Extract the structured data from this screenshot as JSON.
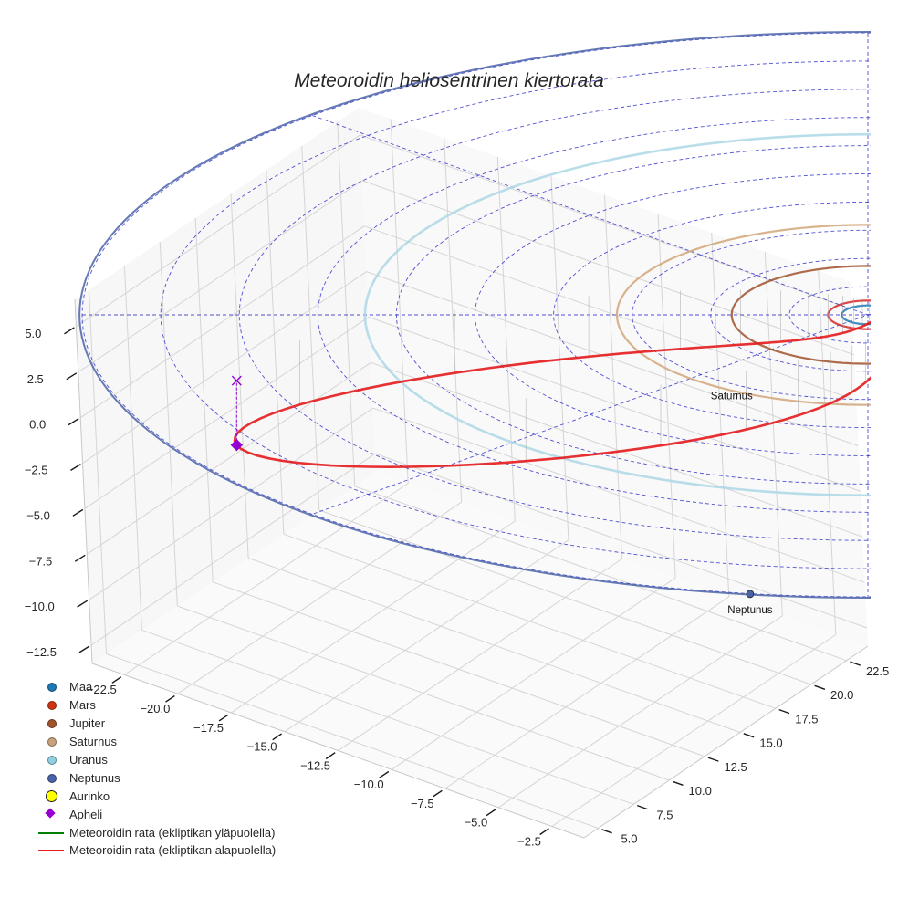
{
  "chart_data": {
    "type": "3d-line",
    "title": "Meteoroidin heliosentrinen kiertorata",
    "axes": {
      "x": {
        "ticks": [
          "−22.5",
          "−20.0",
          "−17.5",
          "−15.0",
          "−12.5",
          "−10.0",
          "−7.5",
          "−5.0",
          "−2.5"
        ],
        "range": [
          -24,
          -1
        ]
      },
      "y": {
        "ticks": [
          "5.0",
          "7.5",
          "10.0",
          "12.5",
          "15.0",
          "17.5",
          "20.0",
          "22.5"
        ],
        "range": [
          4,
          24
        ]
      },
      "z": {
        "ticks": [
          "5.0",
          "2.5",
          "0.0",
          "−2.5",
          "−5.0",
          "−7.5",
          "−10.0",
          "−12.5"
        ],
        "range": [
          -13.5,
          6.5
        ]
      }
    },
    "planets": [
      {
        "name": "Maa",
        "radius_au": 1.0,
        "color": "#1f77b4"
      },
      {
        "name": "Mars",
        "radius_au": 1.52,
        "color": "#d62728"
      },
      {
        "name": "Jupiter",
        "radius_au": 5.2,
        "color": "#a0522d"
      },
      {
        "name": "Saturnus",
        "radius_au": 9.58,
        "color": "#d2a679"
      },
      {
        "name": "Uranus",
        "radius_au": 19.2,
        "color": "#add8e6"
      },
      {
        "name": "Neptunus",
        "radius_au": 30.1,
        "color": "#4a63a8"
      }
    ],
    "planet_labels": [
      {
        "name": "Saturnus",
        "ecl_x": -5.2,
        "ecl_y": 9.0
      },
      {
        "name": "Neptunus",
        "ecl_x": -4.5,
        "ecl_y": 29.7
      }
    ],
    "sun": {
      "name": "Aurinko",
      "color": "#ffff00"
    },
    "aphelion": {
      "name": "Apheli",
      "ecl_x": -24.1,
      "ecl_y": 7.0,
      "z": -3.6,
      "color": "#9400d3"
    },
    "aphelion_projection_z": 0.0,
    "meteoroid_orbit": {
      "perihelion_au": 1.0,
      "aphelion_au": 25.1,
      "aphelion_angle_deg": 163.8,
      "max_below_ecliptic_z": -3.6,
      "above_color": "#008000",
      "below_color": "#e41a1c"
    },
    "ecliptic_grid": {
      "color": "#3333cc",
      "circle_radii_au": [
        3,
        6,
        9,
        12,
        15,
        18,
        21,
        24,
        27,
        30
      ],
      "radial_angles_deg": [
        0,
        45,
        90,
        135
      ]
    },
    "legend": [
      {
        "label": "Maa",
        "kind": "dot",
        "color": "#1f77b4"
      },
      {
        "label": "Mars",
        "kind": "dot",
        "color": "#cc3311"
      },
      {
        "label": "Jupiter",
        "kind": "dot",
        "color": "#a0522d"
      },
      {
        "label": "Saturnus",
        "kind": "dot",
        "color": "#c8a27a"
      },
      {
        "label": "Uranus",
        "kind": "dot",
        "color": "#8ecfe0"
      },
      {
        "label": "Neptunus",
        "kind": "dot",
        "color": "#4a63a8"
      },
      {
        "label": "Aurinko",
        "kind": "big",
        "color": "#ffff00"
      },
      {
        "label": "Apheli",
        "kind": "diamond",
        "color": "#9400d3"
      },
      {
        "label": "Meteoroidin rata (ekliptikan yläpuolella)",
        "kind": "line",
        "color": "#008000"
      },
      {
        "label": "Meteoroidin rata (ekliptikan alapuolella)",
        "kind": "line",
        "color": "#e41a1c"
      }
    ]
  }
}
